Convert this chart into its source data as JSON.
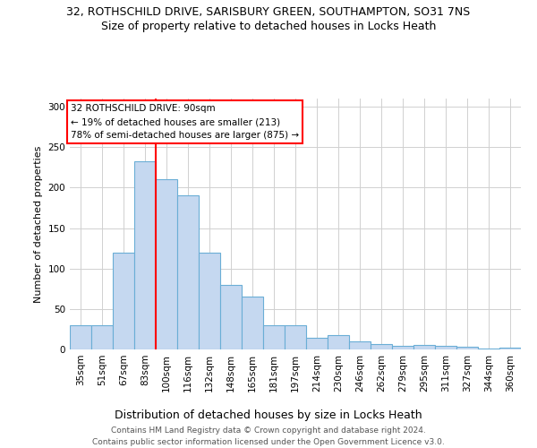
{
  "title1": "32, ROTHSCHILD DRIVE, SARISBURY GREEN, SOUTHAMPTON, SO31 7NS",
  "title2": "Size of property relative to detached houses in Locks Heath",
  "xlabel": "Distribution of detached houses by size in Locks Heath",
  "ylabel": "Number of detached properties",
  "categories": [
    "35sqm",
    "51sqm",
    "67sqm",
    "83sqm",
    "100sqm",
    "116sqm",
    "132sqm",
    "148sqm",
    "165sqm",
    "181sqm",
    "197sqm",
    "214sqm",
    "230sqm",
    "246sqm",
    "262sqm",
    "279sqm",
    "295sqm",
    "311sqm",
    "327sqm",
    "344sqm",
    "360sqm"
  ],
  "values": [
    30,
    30,
    120,
    232,
    210,
    190,
    120,
    80,
    65,
    30,
    30,
    14,
    18,
    10,
    7,
    4,
    5,
    4,
    3,
    1,
    2
  ],
  "bar_color": "#c5d8f0",
  "bar_edge_color": "#6aaed6",
  "red_line_x": 3.5,
  "annotation_line1": "32 ROTHSCHILD DRIVE: 90sqm",
  "annotation_line2": "← 19% of detached houses are smaller (213)",
  "annotation_line3": "78% of semi-detached houses are larger (875) →",
  "ylim": [
    0,
    310
  ],
  "yticks": [
    0,
    50,
    100,
    150,
    200,
    250,
    300
  ],
  "footer1": "Contains HM Land Registry data © Crown copyright and database right 2024.",
  "footer2": "Contains public sector information licensed under the Open Government Licence v3.0.",
  "bg_color": "#ffffff",
  "grid_color": "#d0d0d0",
  "title1_fontsize": 9,
  "title2_fontsize": 9,
  "ylabel_fontsize": 8,
  "xlabel_fontsize": 9,
  "tick_fontsize": 7.5,
  "annotation_fontsize": 7.5,
  "footer_fontsize": 6.5
}
